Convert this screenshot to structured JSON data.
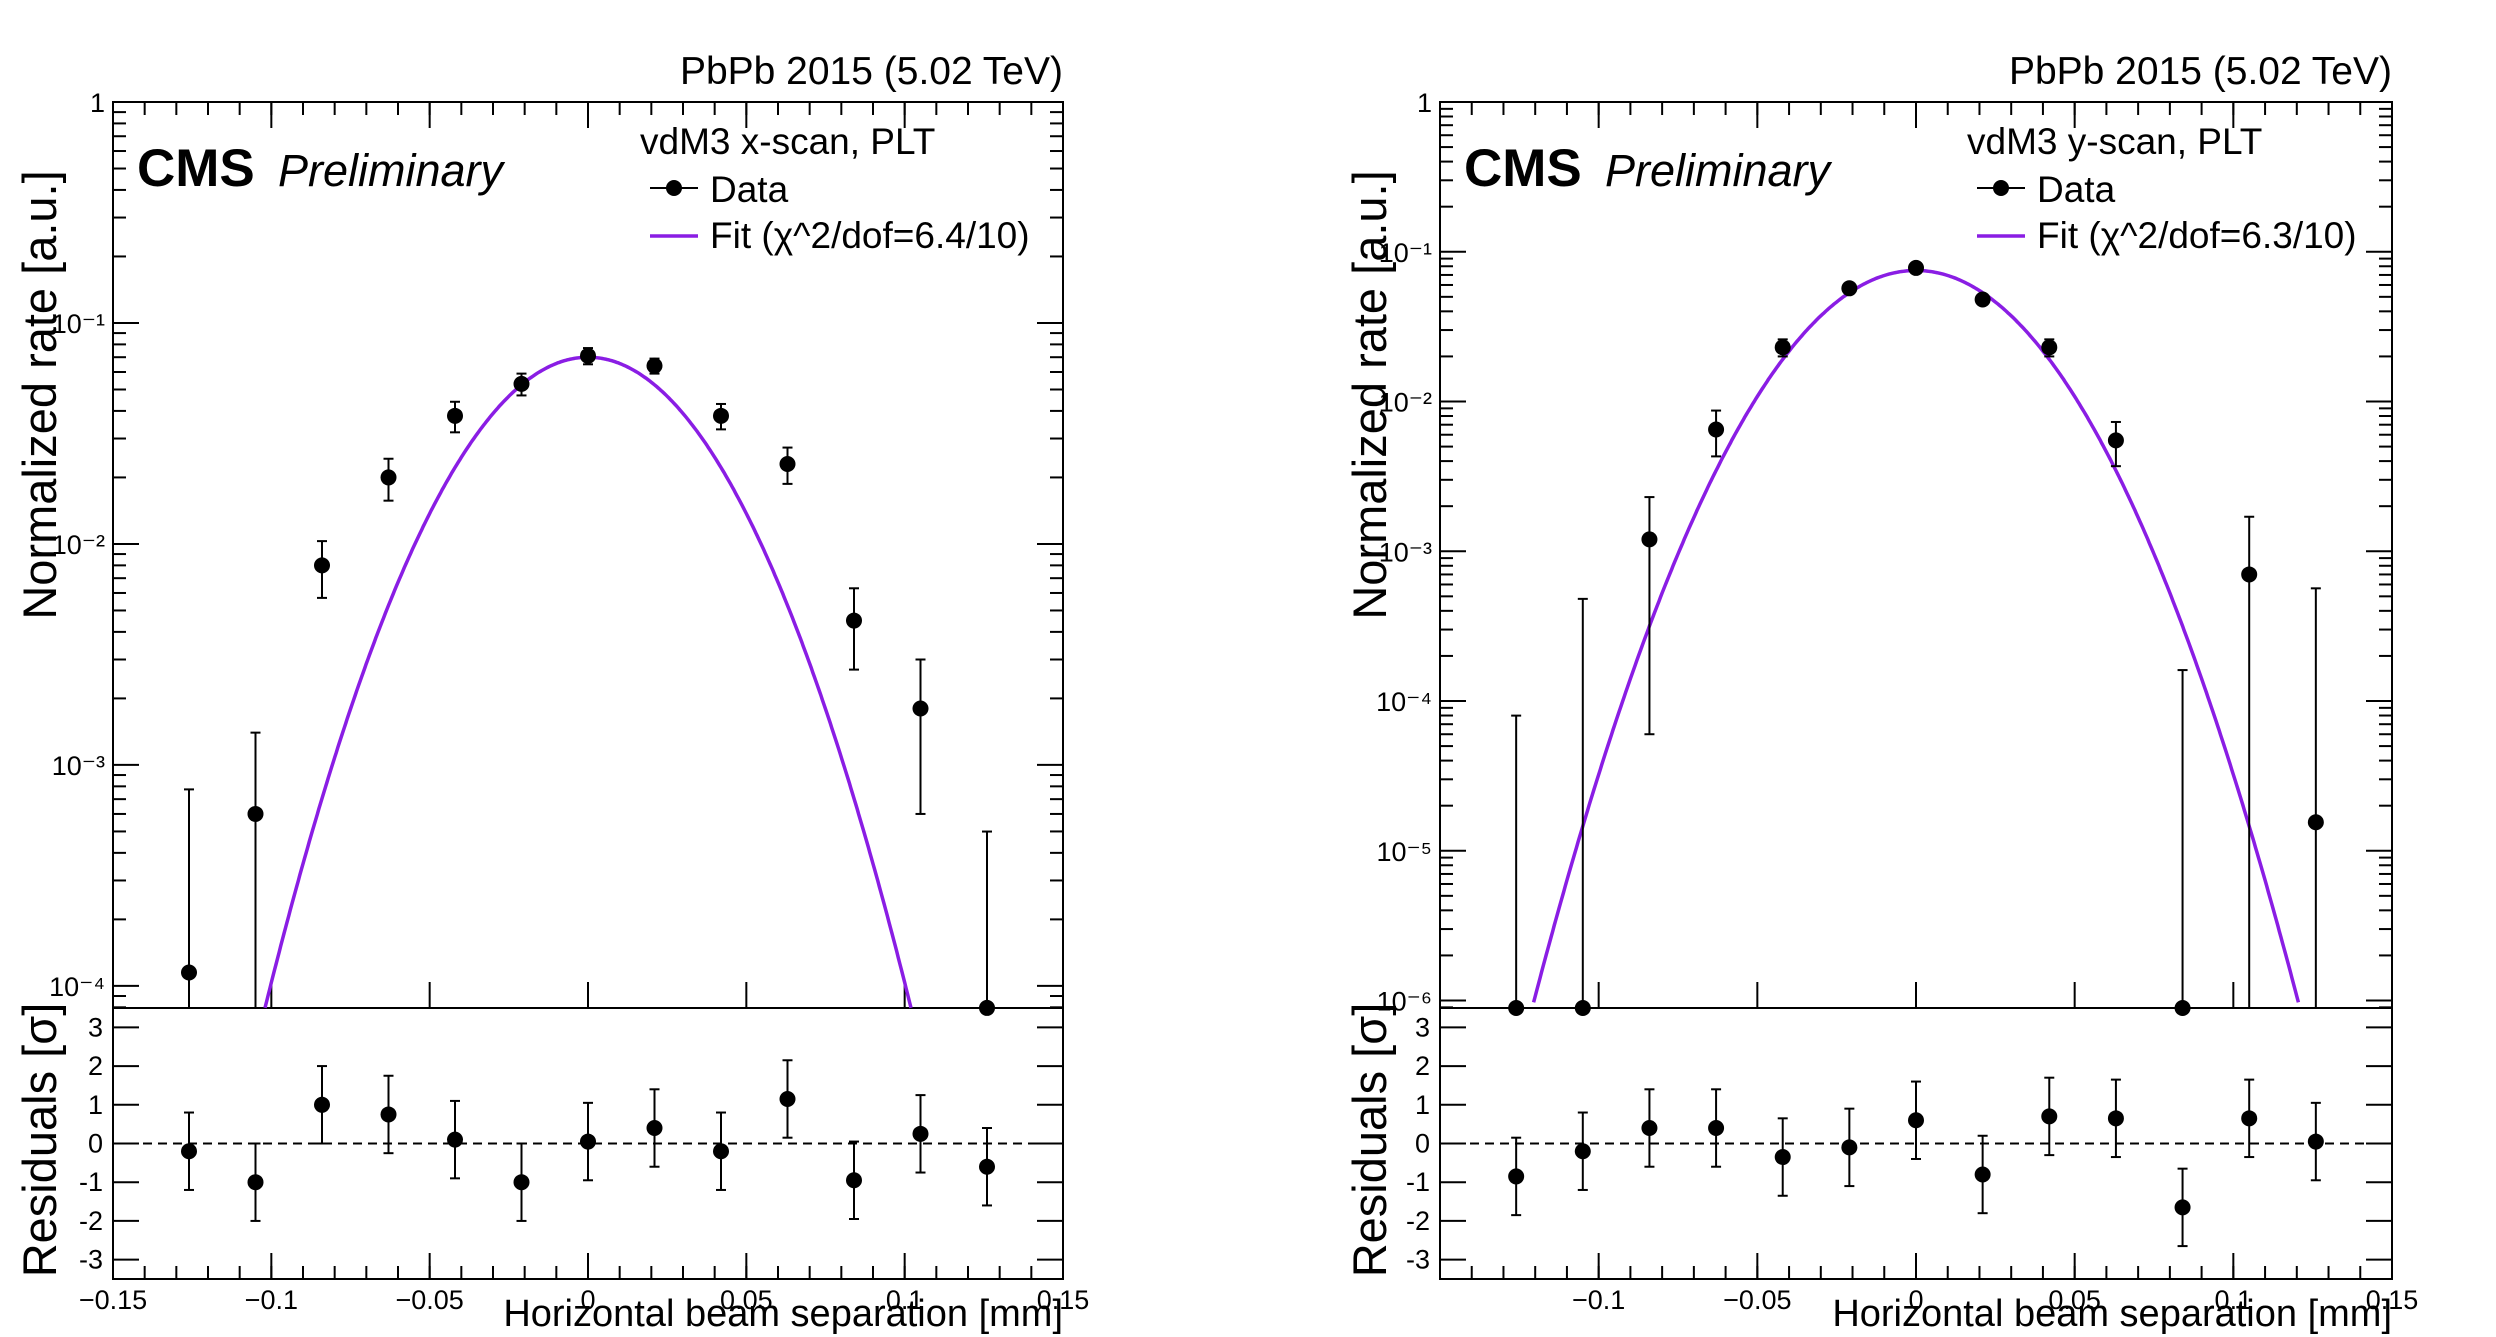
{
  "chart_data": [
    {
      "type": "scatter",
      "energy_label": "PbPb 2015 (5.02 TeV)",
      "cms_label": "CMS",
      "prelim_label": "Preliminary",
      "scan_label": "vdM3 x-scan,  PLT",
      "legend": [
        "Data",
        "Fit (χ^2/dof=6.4/10)"
      ],
      "ylabel": "Normalized rate [a.u.]",
      "ylabel_residuals": "Residuals [σ]",
      "xlabel": "Horizontal beam separation [mm]",
      "xlim": [
        -0.15,
        0.15
      ],
      "ylim_log": [
        -4.1,
        0
      ],
      "residual_ylim": [
        -3.5,
        3.5
      ],
      "xticks": [
        "−0.15",
        "−0.1",
        "−0.05",
        "0",
        "0.05",
        "0.1",
        "0.15"
      ],
      "xtick_values": [
        -0.15,
        -0.1,
        -0.05,
        0,
        0.05,
        0.1,
        0.15
      ],
      "yticks": [
        "10⁻⁴",
        "10⁻³",
        "10⁻²",
        "10⁻¹",
        "1"
      ],
      "ytick_exps": [
        -4,
        -3,
        -2,
        -1,
        0
      ],
      "residual_yticks": [
        3,
        2,
        1,
        0,
        -1,
        -2,
        -3
      ],
      "fit": {
        "amplitude": 0.07,
        "mean": 0.0,
        "sigma": 0.0277
      },
      "series": [
        {
          "name": "Data",
          "x": [
            -0.126,
            -0.105,
            -0.084,
            -0.063,
            -0.042,
            -0.021,
            0.0,
            0.021,
            0.042,
            0.063,
            0.084,
            0.105,
            0.126
          ],
          "y": [
            0.000115,
            0.0006,
            0.008,
            0.02,
            0.038,
            0.053,
            0.071,
            0.064,
            0.038,
            0.023,
            0.0045,
            0.0018,
            7.95e-05
          ],
          "yerr_low": [
            0.000115,
            0.0006,
            0.0023,
            0.0043,
            0.006,
            0.006,
            0.006,
            0.005,
            0.005,
            0.0043,
            0.0018,
            0.0012,
            7.95e-05
          ],
          "yerr_high": [
            0.00066,
            0.0008,
            0.0023,
            0.0043,
            0.006,
            0.006,
            0.006,
            0.005,
            0.005,
            0.0043,
            0.0018,
            0.0012,
            0.00042
          ]
        }
      ],
      "residuals": {
        "x": [
          -0.126,
          -0.105,
          -0.084,
          -0.063,
          -0.042,
          -0.021,
          0.0,
          0.021,
          0.042,
          0.063,
          0.084,
          0.105,
          0.126
        ],
        "y": [
          -0.2,
          -1.0,
          1.0,
          0.75,
          0.1,
          -1.0,
          0.05,
          0.4,
          -0.2,
          1.15,
          -0.95,
          0.25,
          -0.6
        ],
        "err": [
          1.0,
          1.0,
          1.0,
          1.0,
          1.0,
          1.0,
          1.0,
          1.0,
          1.0,
          1.0,
          1.0,
          1.0,
          1.0
        ]
      }
    },
    {
      "type": "scatter",
      "energy_label": "PbPb 2015 (5.02 TeV)",
      "cms_label": "CMS",
      "prelim_label": "Preliminary",
      "scan_label": "vdM3 y-scan, PLT",
      "legend": [
        "Data",
        "Fit (χ^2/dof=6.3/10)"
      ],
      "ylabel": "Normalized rate [a.u.]",
      "ylabel_residuals": "Residuals [σ]",
      "xlabel": "Horizontal beam separation [mm]",
      "xlim": [
        -0.15,
        0.15
      ],
      "ylim_log": [
        -6.05,
        0
      ],
      "residual_ylim": [
        -3.5,
        3.5
      ],
      "xticks": [
        "−0.1",
        "−0.05",
        "0",
        "0.05",
        "0.1",
        "0.15"
      ],
      "xtick_values": [
        -0.1,
        -0.05,
        0,
        0.05,
        0.1,
        0.15
      ],
      "yticks": [
        "10⁻⁶",
        "10⁻⁵",
        "10⁻⁴",
        "10⁻³",
        "10⁻²",
        "10⁻¹",
        "1"
      ],
      "ytick_exps": [
        -6,
        -5,
        -4,
        -3,
        -2,
        -1,
        0
      ],
      "residual_yticks": [
        3,
        2,
        1,
        0,
        -1,
        -2,
        -3
      ],
      "fit": {
        "amplitude": 0.075,
        "mean": 0.0,
        "sigma": 0.0254
      },
      "series": [
        {
          "name": "Data",
          "x": [
            -0.126,
            -0.105,
            -0.084,
            -0.063,
            -0.042,
            -0.021,
            0.0,
            0.021,
            0.042,
            0.063,
            0.084,
            0.105,
            0.126
          ],
          "y": [
            8.9e-07,
            8.9e-07,
            0.0012,
            0.0065,
            0.023,
            0.057,
            0.078,
            0.048,
            0.023,
            0.0055,
            8.9e-07,
            0.0007,
            1.55e-05
          ],
          "yerr_low": [
            0.0,
            0.0,
            0.00114,
            0.0022,
            0.003,
            0.003,
            0.003,
            0.003,
            0.003,
            0.0018,
            0.0,
            0.0007,
            1.55e-05
          ],
          "yerr_high": [
            7.9e-05,
            0.00048,
            0.0011,
            0.0022,
            0.003,
            0.003,
            0.003,
            0.003,
            0.003,
            0.0018,
            0.00016,
            0.001,
            0.00055
          ]
        }
      ],
      "residuals": {
        "x": [
          -0.126,
          -0.105,
          -0.084,
          -0.063,
          -0.042,
          -0.021,
          0.0,
          0.021,
          0.042,
          0.063,
          0.084,
          0.105,
          0.126
        ],
        "y": [
          -0.85,
          -0.2,
          0.4,
          0.4,
          -0.35,
          -0.1,
          0.6,
          -0.8,
          0.7,
          0.65,
          -1.65,
          0.65,
          0.05
        ],
        "err": [
          1.0,
          1.0,
          1.0,
          1.0,
          1.0,
          1.0,
          1.0,
          1.0,
          1.0,
          1.0,
          1.0,
          1.0,
          1.0
        ]
      }
    }
  ],
  "colors": {
    "fit": "#8a1de4",
    "data": "#000000",
    "frame": "#000000"
  }
}
